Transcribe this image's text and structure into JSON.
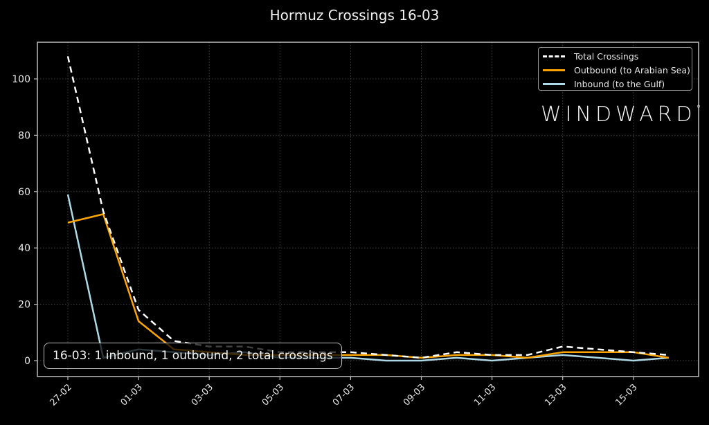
{
  "title": "Hormuz Crossings 16-03",
  "legend": {
    "items": [
      {
        "label": "Total Crossings",
        "style": "dashed",
        "color": "#ffffff"
      },
      {
        "label": "Outbound (to Arabian Sea)",
        "style": "solid",
        "color": "#ffa500"
      },
      {
        "label": "Inbound (to the Gulf)",
        "style": "solid",
        "color": "#add8e6"
      }
    ]
  },
  "logo": {
    "text": "WINDWARD",
    "mark": "°"
  },
  "annotation": "16-03: 1 inbound, 1 outbound, 2 total crossings",
  "colors": {
    "background": "#000000",
    "total": "#ffffff",
    "outbound": "#ffa500",
    "inbound": "#add8e6",
    "grid": "#444444",
    "frame": "#bdbdbd"
  },
  "chart_data": {
    "type": "line",
    "title": "Hormuz Crossings 16-03",
    "xlabel": "",
    "ylabel": "",
    "x": [
      "27-02",
      "28-02",
      "01-03",
      "02-03",
      "03-03",
      "04-03",
      "05-03",
      "06-03",
      "07-03",
      "08-03",
      "09-03",
      "10-03",
      "11-03",
      "12-03",
      "13-03",
      "14-03",
      "15-03",
      "16-03"
    ],
    "x_tick_labels": [
      "27-02",
      "01-03",
      "03-03",
      "05-03",
      "07-03",
      "09-03",
      "11-03",
      "13-03",
      "15-03"
    ],
    "y_ticks": [
      0,
      20,
      40,
      60,
      80,
      100
    ],
    "ylim": [
      -5.5,
      113
    ],
    "grid": true,
    "legend_position": "upper right",
    "series": [
      {
        "name": "Total Crossings",
        "style": "dashed",
        "color": "#ffffff",
        "values": [
          108,
          53,
          18,
          7,
          5,
          5,
          3,
          3,
          3,
          2,
          1,
          3,
          2,
          2,
          5,
          4,
          3,
          2
        ]
      },
      {
        "name": "Outbound (to Arabian Sea)",
        "style": "solid",
        "color": "#ffa500",
        "values": [
          49,
          52,
          14,
          4,
          3,
          2,
          2,
          2,
          2,
          2,
          1,
          2,
          2,
          1,
          3,
          3,
          3,
          1
        ]
      },
      {
        "name": "Inbound (to the Gulf)",
        "style": "solid",
        "color": "#add8e6",
        "values": [
          59,
          1,
          4,
          3,
          2,
          3,
          1,
          1,
          1,
          0,
          0,
          1,
          0,
          1,
          2,
          1,
          0,
          1
        ]
      }
    ],
    "annotations": [
      "16-03: 1 inbound, 1 outbound, 2 total crossings"
    ]
  }
}
